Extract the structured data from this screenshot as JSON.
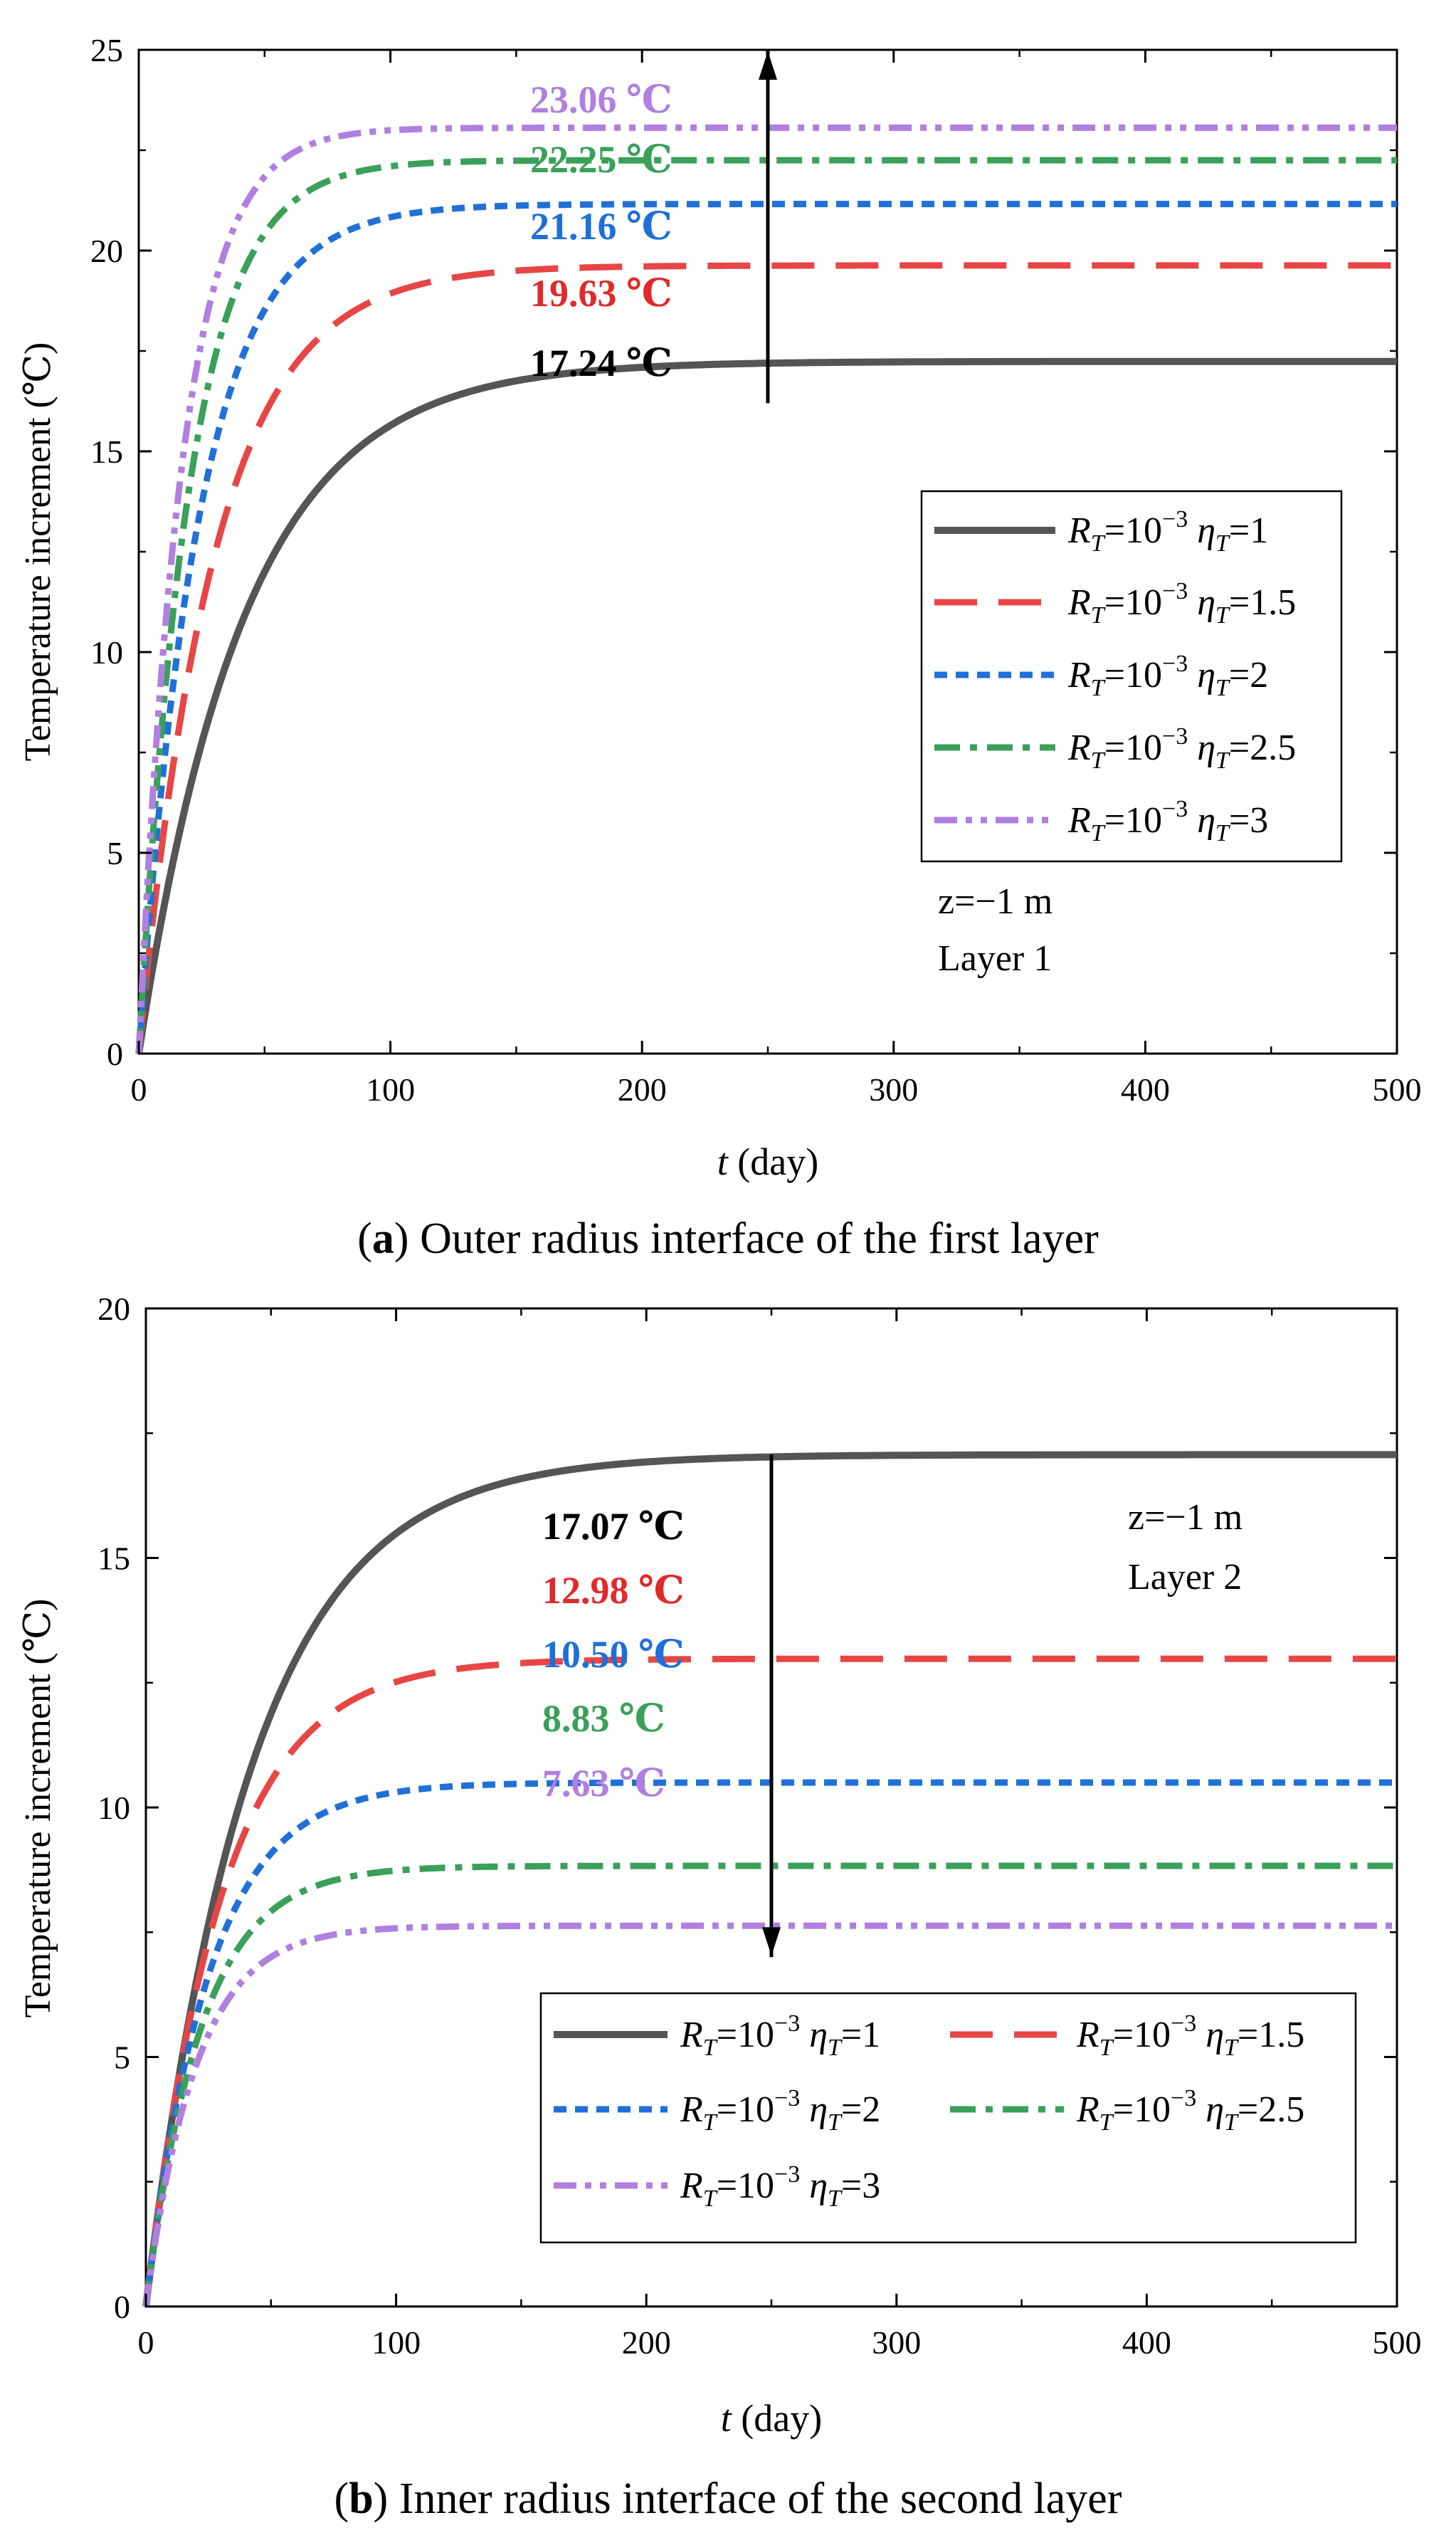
{
  "chart_data": [
    {
      "type": "line",
      "panel_label": "a",
      "caption": "Outer radius interface of the first layer",
      "xlabel_var": "t",
      "xlabel_unit": " (day)",
      "ylabel": "Temperature increment (℃)",
      "xlim": [
        0,
        500
      ],
      "ylim": [
        0,
        25
      ],
      "xticks": [
        0,
        100,
        200,
        300,
        400,
        500
      ],
      "yticks": [
        0,
        5,
        10,
        15,
        20,
        25
      ],
      "annotation_lines": [
        "z=−1 m",
        "Layer 1"
      ],
      "arrow": {
        "x": 250,
        "from_y": 16.2,
        "to_y": 25,
        "direction": "up"
      },
      "final_labels": [
        {
          "text": "23.06 ℃",
          "color": "#b07fe0",
          "y": 23.06
        },
        {
          "text": "22.25 ℃",
          "color": "#3aa05a",
          "y": 22.25
        },
        {
          "text": "21.16 ℃",
          "color": "#1f6fd8",
          "y": 21.16
        },
        {
          "text": "19.63 ℃",
          "color": "#e02a2a",
          "y": 19.63
        },
        {
          "text": "17.24 ℃",
          "color": "#000000",
          "y": 17.24
        }
      ],
      "series": [
        {
          "name": "R_T=10^-3 η_T=1",
          "R": "10",
          "R_exp": "−3",
          "eta": "1",
          "color": "#555555",
          "dash": "solid",
          "final": 17.24,
          "tau": 42
        },
        {
          "name": "R_T=10^-3 η_T=1.5",
          "R": "10",
          "R_exp": "−3",
          "eta": "1.5",
          "color": "#e84545",
          "dash": "dash",
          "final": 19.63,
          "tau": 30
        },
        {
          "name": "R_T=10^-3 η_T=2",
          "R": "10",
          "R_exp": "−3",
          "eta": "2",
          "color": "#2070d8",
          "dash": "short",
          "final": 21.16,
          "tau": 24
        },
        {
          "name": "R_T=10^-3 η_T=2.5",
          "R": "10",
          "R_exp": "−3",
          "eta": "2.5",
          "color": "#3aa05a",
          "dash": "dashdot",
          "final": 22.25,
          "tau": 20
        },
        {
          "name": "R_T=10^-3 η_T=3",
          "R": "10",
          "R_exp": "−3",
          "eta": "3",
          "color": "#b07fe0",
          "dash": "dashdotdot",
          "final": 23.06,
          "tau": 17
        }
      ]
    },
    {
      "type": "line",
      "panel_label": "b",
      "caption": "Inner radius interface of the second layer",
      "xlabel_var": "t",
      "xlabel_unit": " (day)",
      "ylabel": "Temperature increment (℃)",
      "xlim": [
        0,
        500
      ],
      "ylim": [
        0,
        20
      ],
      "xticks": [
        0,
        100,
        200,
        300,
        400,
        500
      ],
      "yticks": [
        0,
        5,
        10,
        15,
        20
      ],
      "annotation_lines": [
        "z=−1 m",
        "Layer 2"
      ],
      "arrow": {
        "x": 250,
        "from_y": 17.07,
        "to_y": 7.0,
        "direction": "down"
      },
      "final_labels": [
        {
          "text": "17.07 ℃",
          "color": "#000000",
          "y": 17.07
        },
        {
          "text": "12.98 ℃",
          "color": "#e02a2a",
          "y": 12.98
        },
        {
          "text": "10.50 ℃",
          "color": "#1f6fd8",
          "y": 10.5
        },
        {
          "text": "8.83 ℃",
          "color": "#3aa05a",
          "y": 8.83
        },
        {
          "text": "7.63 ℃",
          "color": "#b07fe0",
          "y": 7.63
        }
      ],
      "series": [
        {
          "name": "R_T=10^-3 η_T=1",
          "R": "10",
          "R_exp": "−3",
          "eta": "1",
          "color": "#555555",
          "dash": "solid",
          "final": 17.07,
          "tau": 42
        },
        {
          "name": "R_T=10^-3 η_T=1.5",
          "R": "10",
          "R_exp": "−3",
          "eta": "1.5",
          "color": "#e84545",
          "dash": "dash",
          "final": 12.98,
          "tau": 30
        },
        {
          "name": "R_T=10^-3 η_T=2",
          "R": "10",
          "R_exp": "−3",
          "eta": "2",
          "color": "#2070d8",
          "dash": "short",
          "final": 10.5,
          "tau": 25
        },
        {
          "name": "R_T=10^-3 η_T=2.5",
          "R": "10",
          "R_exp": "−3",
          "eta": "2.5",
          "color": "#3aa05a",
          "dash": "dashdot",
          "final": 8.83,
          "tau": 22
        },
        {
          "name": "R_T=10^-3 η_T=3",
          "R": "10",
          "R_exp": "−3",
          "eta": "3",
          "color": "#b07fe0",
          "dash": "dashdotdot",
          "final": 7.63,
          "tau": 20
        }
      ]
    }
  ]
}
